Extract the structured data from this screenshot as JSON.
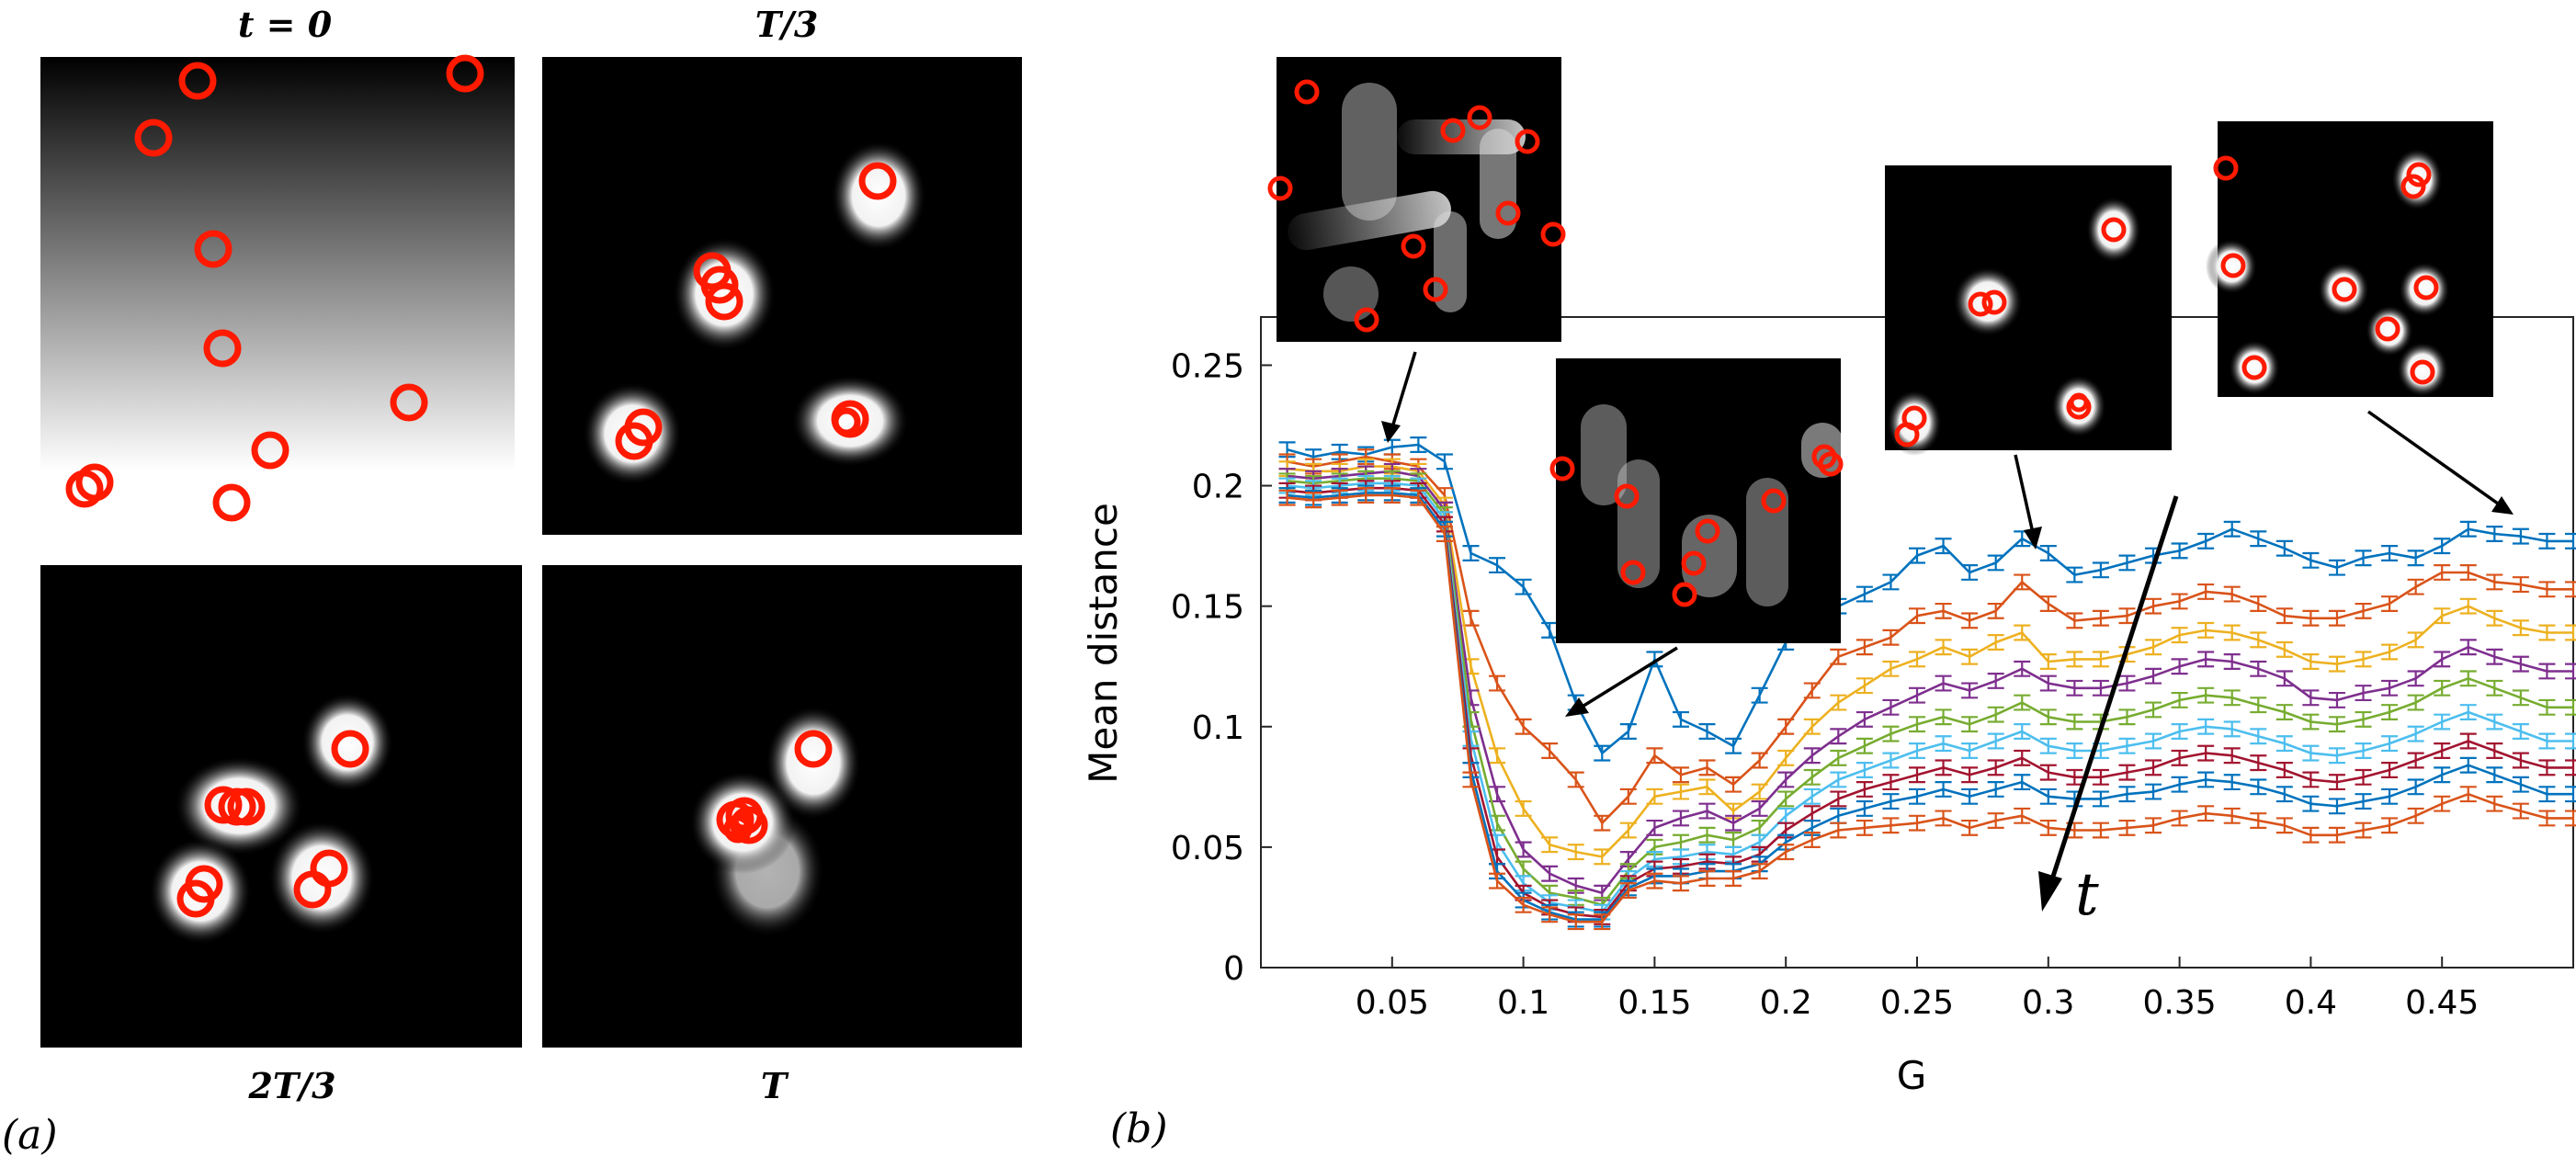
{
  "panel_a": {
    "panel_label": "(a)",
    "frames": [
      {
        "id": "t0",
        "label": "t = 0"
      },
      {
        "id": "t1",
        "label": "T/3"
      },
      {
        "id": "t2",
        "label": "2T/3"
      },
      {
        "id": "t3",
        "label": "T"
      }
    ],
    "colors": {
      "marker": "#ff1a00",
      "frame_bg": "#000000",
      "glow": "#ffffff"
    }
  },
  "panel_b": {
    "panel_label": "(b)",
    "time_arrow_label": "t"
  },
  "chart_data": {
    "type": "line",
    "xlabel": "G",
    "ylabel": "Mean distance",
    "xlim": [
      0,
      0.5
    ],
    "ylim": [
      0,
      0.27
    ],
    "xticks": [
      0.05,
      0.1,
      0.15,
      0.2,
      0.25,
      0.3,
      0.35,
      0.4,
      0.45
    ],
    "xtick_labels": [
      "0.05",
      "0.1",
      "0.15",
      "0.2",
      "0.25",
      "0.3",
      "0.35",
      "0.4",
      "0.45"
    ],
    "yticks": [
      0,
      0.05,
      0.1,
      0.15,
      0.2,
      0.25
    ],
    "ytick_labels": [
      "0",
      "0.05",
      "0.1",
      "0.15",
      "0.2",
      "0.25"
    ],
    "grid": false,
    "x": [
      0.01,
      0.02,
      0.03,
      0.04,
      0.05,
      0.06,
      0.07,
      0.08,
      0.09,
      0.1,
      0.11,
      0.12,
      0.13,
      0.14,
      0.15,
      0.16,
      0.17,
      0.18,
      0.19,
      0.2,
      0.21,
      0.22,
      0.23,
      0.24,
      0.25,
      0.26,
      0.27,
      0.28,
      0.29,
      0.3,
      0.31,
      0.32,
      0.33,
      0.34,
      0.35,
      0.36,
      0.37,
      0.38,
      0.39,
      0.4,
      0.41,
      0.42,
      0.43,
      0.44,
      0.45,
      0.46,
      0.47,
      0.48,
      0.49,
      0.5
    ],
    "error_bar_halfwidth": 0.003,
    "series": [
      {
        "color": "#0072bd",
        "values": [
          0.215,
          0.212,
          0.214,
          0.213,
          0.216,
          0.217,
          0.21,
          0.172,
          0.167,
          0.158,
          0.14,
          0.11,
          0.089,
          0.098,
          0.128,
          0.103,
          0.098,
          0.092,
          0.113,
          0.135,
          0.143,
          0.15,
          0.155,
          0.16,
          0.171,
          0.175,
          0.164,
          0.168,
          0.178,
          0.172,
          0.163,
          0.165,
          0.168,
          0.171,
          0.173,
          0.177,
          0.182,
          0.178,
          0.174,
          0.169,
          0.166,
          0.17,
          0.172,
          0.17,
          0.175,
          0.182,
          0.18,
          0.179,
          0.177,
          0.177
        ]
      },
      {
        "color": "#d95319",
        "values": [
          0.21,
          0.208,
          0.21,
          0.212,
          0.21,
          0.208,
          0.196,
          0.145,
          0.118,
          0.1,
          0.09,
          0.078,
          0.06,
          0.071,
          0.088,
          0.08,
          0.083,
          0.076,
          0.086,
          0.1,
          0.115,
          0.129,
          0.133,
          0.137,
          0.146,
          0.148,
          0.144,
          0.148,
          0.16,
          0.151,
          0.144,
          0.145,
          0.146,
          0.15,
          0.152,
          0.156,
          0.155,
          0.151,
          0.146,
          0.145,
          0.145,
          0.148,
          0.151,
          0.158,
          0.164,
          0.164,
          0.16,
          0.159,
          0.157,
          0.157
        ]
      },
      {
        "color": "#edb120",
        "values": [
          0.207,
          0.206,
          0.206,
          0.208,
          0.208,
          0.206,
          0.192,
          0.125,
          0.088,
          0.066,
          0.051,
          0.048,
          0.046,
          0.057,
          0.071,
          0.073,
          0.075,
          0.065,
          0.073,
          0.087,
          0.1,
          0.11,
          0.117,
          0.124,
          0.128,
          0.133,
          0.129,
          0.135,
          0.139,
          0.127,
          0.128,
          0.128,
          0.13,
          0.133,
          0.138,
          0.14,
          0.139,
          0.136,
          0.132,
          0.127,
          0.126,
          0.128,
          0.131,
          0.136,
          0.146,
          0.15,
          0.145,
          0.141,
          0.139,
          0.139
        ]
      },
      {
        "color": "#7e2f8e",
        "values": [
          0.204,
          0.203,
          0.204,
          0.205,
          0.206,
          0.204,
          0.19,
          0.112,
          0.072,
          0.049,
          0.039,
          0.034,
          0.031,
          0.045,
          0.058,
          0.062,
          0.065,
          0.06,
          0.066,
          0.078,
          0.088,
          0.096,
          0.103,
          0.108,
          0.113,
          0.118,
          0.115,
          0.119,
          0.124,
          0.118,
          0.116,
          0.116,
          0.118,
          0.121,
          0.125,
          0.128,
          0.127,
          0.124,
          0.12,
          0.112,
          0.111,
          0.114,
          0.116,
          0.12,
          0.128,
          0.133,
          0.129,
          0.126,
          0.123,
          0.123
        ]
      },
      {
        "color": "#77ac30",
        "values": [
          0.202,
          0.201,
          0.202,
          0.203,
          0.203,
          0.202,
          0.188,
          0.103,
          0.06,
          0.041,
          0.031,
          0.029,
          0.026,
          0.04,
          0.05,
          0.052,
          0.055,
          0.053,
          0.058,
          0.07,
          0.079,
          0.087,
          0.092,
          0.097,
          0.101,
          0.104,
          0.101,
          0.105,
          0.11,
          0.104,
          0.102,
          0.102,
          0.104,
          0.107,
          0.111,
          0.113,
          0.112,
          0.109,
          0.106,
          0.102,
          0.101,
          0.103,
          0.106,
          0.11,
          0.116,
          0.12,
          0.116,
          0.112,
          0.108,
          0.108
        ]
      },
      {
        "color": "#4dbeee",
        "values": [
          0.2,
          0.199,
          0.2,
          0.201,
          0.201,
          0.2,
          0.186,
          0.095,
          0.052,
          0.035,
          0.027,
          0.025,
          0.023,
          0.037,
          0.045,
          0.046,
          0.048,
          0.047,
          0.052,
          0.063,
          0.071,
          0.078,
          0.082,
          0.086,
          0.09,
          0.093,
          0.09,
          0.094,
          0.098,
          0.092,
          0.09,
          0.09,
          0.092,
          0.094,
          0.098,
          0.1,
          0.099,
          0.096,
          0.093,
          0.089,
          0.088,
          0.09,
          0.093,
          0.097,
          0.102,
          0.106,
          0.102,
          0.098,
          0.094,
          0.094
        ]
      },
      {
        "color": "#a2142f",
        "values": [
          0.198,
          0.197,
          0.198,
          0.199,
          0.199,
          0.198,
          0.184,
          0.088,
          0.046,
          0.031,
          0.025,
          0.022,
          0.021,
          0.035,
          0.041,
          0.042,
          0.044,
          0.043,
          0.047,
          0.057,
          0.064,
          0.07,
          0.074,
          0.077,
          0.08,
          0.083,
          0.08,
          0.083,
          0.087,
          0.081,
          0.079,
          0.079,
          0.081,
          0.083,
          0.087,
          0.089,
          0.088,
          0.085,
          0.082,
          0.078,
          0.077,
          0.079,
          0.082,
          0.086,
          0.09,
          0.094,
          0.09,
          0.086,
          0.083,
          0.083
        ]
      },
      {
        "color": "#0072bd",
        "values": [
          0.196,
          0.195,
          0.196,
          0.197,
          0.197,
          0.196,
          0.182,
          0.082,
          0.04,
          0.028,
          0.023,
          0.02,
          0.02,
          0.033,
          0.038,
          0.038,
          0.04,
          0.04,
          0.043,
          0.052,
          0.058,
          0.063,
          0.066,
          0.069,
          0.071,
          0.074,
          0.071,
          0.074,
          0.077,
          0.071,
          0.07,
          0.07,
          0.072,
          0.073,
          0.076,
          0.078,
          0.077,
          0.075,
          0.072,
          0.068,
          0.067,
          0.069,
          0.071,
          0.075,
          0.08,
          0.084,
          0.08,
          0.076,
          0.072,
          0.072
        ]
      },
      {
        "color": "#d95319",
        "values": [
          0.195,
          0.194,
          0.195,
          0.196,
          0.196,
          0.195,
          0.18,
          0.078,
          0.036,
          0.026,
          0.022,
          0.019,
          0.019,
          0.032,
          0.036,
          0.035,
          0.037,
          0.037,
          0.04,
          0.048,
          0.053,
          0.057,
          0.058,
          0.059,
          0.06,
          0.062,
          0.058,
          0.061,
          0.063,
          0.058,
          0.057,
          0.057,
          0.058,
          0.059,
          0.062,
          0.064,
          0.063,
          0.061,
          0.059,
          0.055,
          0.055,
          0.057,
          0.059,
          0.063,
          0.068,
          0.072,
          0.068,
          0.065,
          0.062,
          0.062
        ]
      }
    ]
  }
}
